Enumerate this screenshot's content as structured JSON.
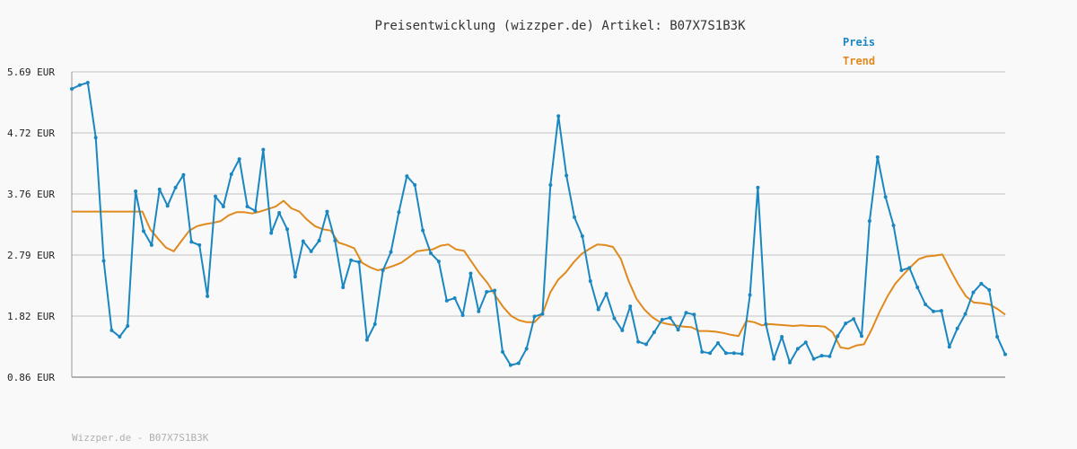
{
  "chart_data": {
    "type": "line",
    "title": "Preisentwicklung (wizzper.de) Artikel: B07X7S1B3K",
    "footer": "Wizzper.de - B07X7S1B3K",
    "y_ticks": [
      "5.69 EUR",
      "4.72 EUR",
      "3.76 EUR",
      "2.79 EUR",
      "1.82 EUR",
      "0.86 EUR"
    ],
    "ylim": [
      0.86,
      5.69
    ],
    "grid": true,
    "legend_position": "top-right",
    "colors": {
      "preis": "#1a87c0",
      "trend": "#e08a1e",
      "grid": "#dddddd",
      "axis": "#999999"
    },
    "series": [
      {
        "name": "Preis",
        "values": [
          5.42,
          5.48,
          5.52,
          4.65,
          2.7,
          1.6,
          1.5,
          1.67,
          3.8,
          3.17,
          2.95,
          3.83,
          3.57,
          3.86,
          4.06,
          3.0,
          2.95,
          2.14,
          3.72,
          3.56,
          4.07,
          4.31,
          3.56,
          3.49,
          4.46,
          3.14,
          3.46,
          3.2,
          2.45,
          3.01,
          2.85,
          3.02,
          3.48,
          3.02,
          2.28,
          2.71,
          2.68,
          1.45,
          1.7,
          2.55,
          2.84,
          3.47,
          4.04,
          3.9,
          3.18,
          2.82,
          2.69,
          2.07,
          2.11,
          1.84,
          2.5,
          1.9,
          2.21,
          2.23,
          1.26,
          1.05,
          1.08,
          1.31,
          1.82,
          1.86,
          3.9,
          4.99,
          4.05,
          3.39,
          3.09,
          2.38,
          1.93,
          2.18,
          1.79,
          1.6,
          1.98,
          1.42,
          1.38,
          1.57,
          1.77,
          1.8,
          1.61,
          1.88,
          1.85,
          1.26,
          1.24,
          1.4,
          1.24,
          1.24,
          1.23,
          2.16,
          3.86,
          1.7,
          1.15,
          1.5,
          1.09,
          1.31,
          1.41,
          1.15,
          1.2,
          1.19,
          1.51,
          1.71,
          1.78,
          1.51,
          3.33,
          4.34,
          3.71,
          3.26,
          2.55,
          2.59,
          2.28,
          2.01,
          1.9,
          1.91,
          1.34,
          1.63,
          1.86,
          2.2,
          2.34,
          2.24,
          1.5,
          1.22
        ]
      },
      {
        "name": "Trend",
        "values": [
          3.48,
          3.48,
          3.48,
          3.48,
          3.48,
          3.48,
          3.48,
          3.48,
          3.48,
          3.48,
          3.2,
          3.05,
          2.91,
          2.85,
          3.02,
          3.18,
          3.25,
          3.28,
          3.3,
          3.33,
          3.42,
          3.47,
          3.47,
          3.45,
          3.48,
          3.52,
          3.56,
          3.65,
          3.53,
          3.48,
          3.35,
          3.25,
          3.2,
          3.18,
          2.99,
          2.95,
          2.9,
          2.67,
          2.6,
          2.55,
          2.58,
          2.62,
          2.67,
          2.76,
          2.85,
          2.87,
          2.88,
          2.94,
          2.96,
          2.88,
          2.86,
          2.68,
          2.5,
          2.35,
          2.15,
          1.97,
          1.83,
          1.76,
          1.73,
          1.73,
          1.86,
          2.2,
          2.4,
          2.52,
          2.68,
          2.81,
          2.89,
          2.96,
          2.95,
          2.92,
          2.73,
          2.38,
          2.1,
          1.93,
          1.81,
          1.73,
          1.7,
          1.68,
          1.66,
          1.65,
          1.59,
          1.59,
          1.58,
          1.56,
          1.53,
          1.51,
          1.75,
          1.73,
          1.68,
          1.7,
          1.69,
          1.68,
          1.67,
          1.68,
          1.67,
          1.67,
          1.66,
          1.57,
          1.33,
          1.31,
          1.36,
          1.38,
          1.62,
          1.9,
          2.14,
          2.34,
          2.48,
          2.61,
          2.73,
          2.77,
          2.78,
          2.8,
          2.56,
          2.33,
          2.14,
          2.04,
          2.03,
          2.01,
          1.94,
          1.85
        ]
      }
    ]
  }
}
